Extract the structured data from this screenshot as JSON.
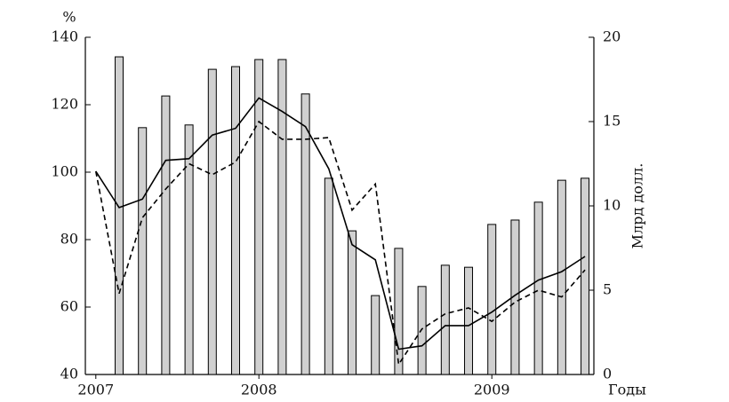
{
  "chart_data": {
    "type": "combo",
    "ylabel": "%",
    "y2label": "Млрд долл.",
    "xlabel": "Годы",
    "xlim": [
      -0.45,
      21.38
    ],
    "xticks": [
      {
        "value": 0,
        "label": "2007"
      },
      {
        "value": 7,
        "label": "2008"
      },
      {
        "value": 17,
        "label": "2009"
      }
    ],
    "ylim": [
      40,
      140
    ],
    "yticks": [
      40,
      60,
      80,
      100,
      120,
      140
    ],
    "y2lim": [
      0,
      20
    ],
    "y2ticks": [
      0,
      5,
      10,
      15,
      20
    ],
    "series": [
      {
        "type": "bar",
        "color": "#d0d0d0",
        "x": [
          1,
          2,
          3,
          4,
          5,
          6,
          7,
          8,
          9,
          10,
          11,
          12,
          13,
          14,
          15,
          16,
          17,
          18,
          19,
          20,
          21
        ],
        "values": [
          134.2,
          113.2,
          122.6,
          114,
          130.5,
          131.3,
          133.4,
          133.4,
          123.2,
          98.2,
          82.6,
          63.4,
          77.4,
          66.1,
          72.4,
          71.8,
          84.5,
          85.8,
          91.1,
          97.6,
          98.2
        ]
      },
      {
        "type": "line",
        "color": "#000000",
        "dashed": false,
        "axis": "y2",
        "x": [
          0,
          1,
          2,
          3,
          4,
          5,
          6,
          7,
          8,
          9,
          10,
          11,
          12,
          13,
          14,
          15,
          16,
          17,
          18,
          19,
          20,
          21
        ],
        "values": [
          12.05,
          9.9,
          10.4,
          12.7,
          12.8,
          14.2,
          14.6,
          16.4,
          15.6,
          14.7,
          12.2,
          7.7,
          6.8,
          1.5,
          1.7,
          2.9,
          2.9,
          3.7,
          4.7,
          5.6,
          6.1,
          7.0
        ]
      },
      {
        "type": "line",
        "color": "#000000",
        "dashed": true,
        "axis": "y2",
        "x": [
          0,
          1,
          2,
          3,
          4,
          5,
          6,
          7,
          8,
          9,
          10,
          11,
          12,
          13,
          14,
          15,
          16,
          17,
          18,
          19,
          20,
          21
        ],
        "values": [
          12.05,
          4.8,
          9.3,
          11.0,
          12.5,
          11.85,
          12.6,
          15.0,
          13.95,
          13.95,
          14.05,
          9.75,
          11.3,
          0.6,
          2.7,
          3.6,
          3.95,
          3.15,
          4.3,
          5.0,
          4.6,
          6.2
        ]
      }
    ]
  }
}
